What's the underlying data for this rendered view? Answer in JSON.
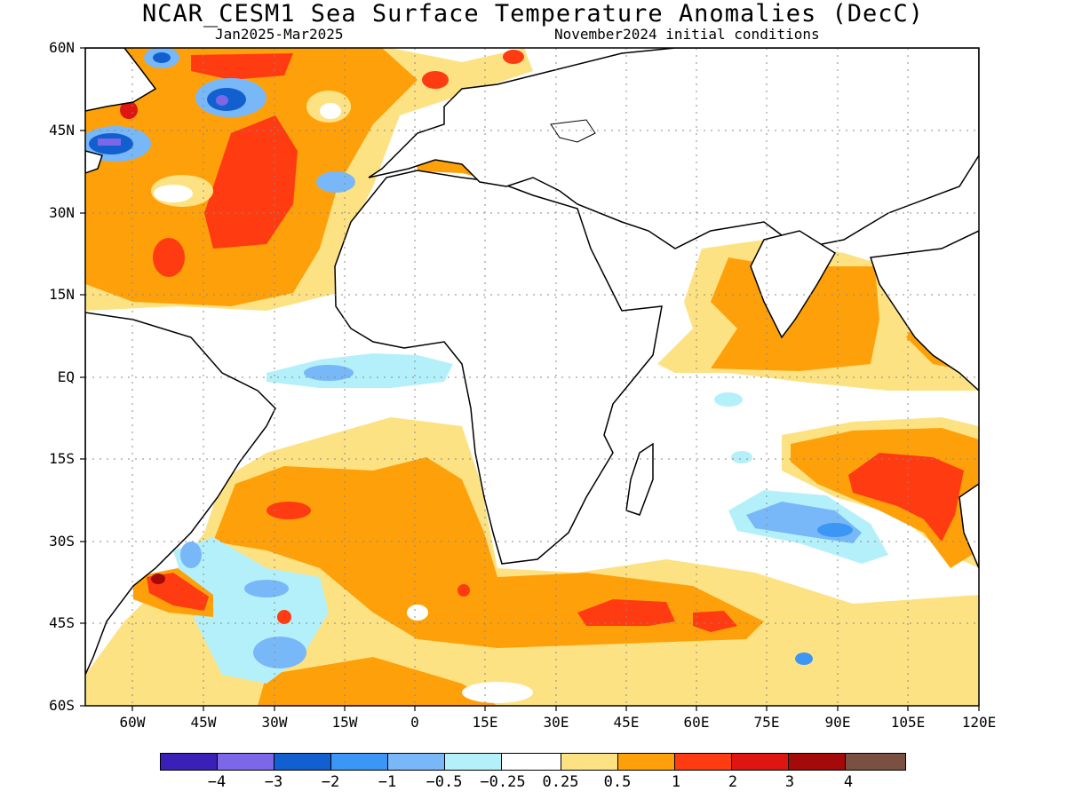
{
  "title": "NCAR_CESM1 Sea Surface Temperature Anomalies (DecC)",
  "subtitle_left": "Jan2025-Mar2025",
  "subtitle_right": "November2024 initial conditions",
  "lat_labels": [
    "60N",
    "45N",
    "30N",
    "15N",
    "EQ",
    "15S",
    "30S",
    "45S",
    "60S"
  ],
  "lon_labels": [
    "60W",
    "45W",
    "30W",
    "15W",
    "0",
    "15E",
    "30E",
    "45E",
    "60E",
    "75E",
    "90E",
    "105E",
    "120E"
  ],
  "colorbar": {
    "colors": [
      "#3b20b8",
      "#7b67e8",
      "#1260d0",
      "#3c96f5",
      "#78b8f8",
      "#b4f0fa",
      "#ffffff",
      "#fde283",
      "#fea00a",
      "#ff3b12",
      "#de1510",
      "#a40a0a",
      "#7a5043"
    ],
    "labels": [
      "-4",
      "-3",
      "-2",
      "-1",
      "-0.5",
      "-0.25",
      "0.25",
      "0.5",
      "1",
      "2",
      "3",
      "4"
    ]
  }
}
